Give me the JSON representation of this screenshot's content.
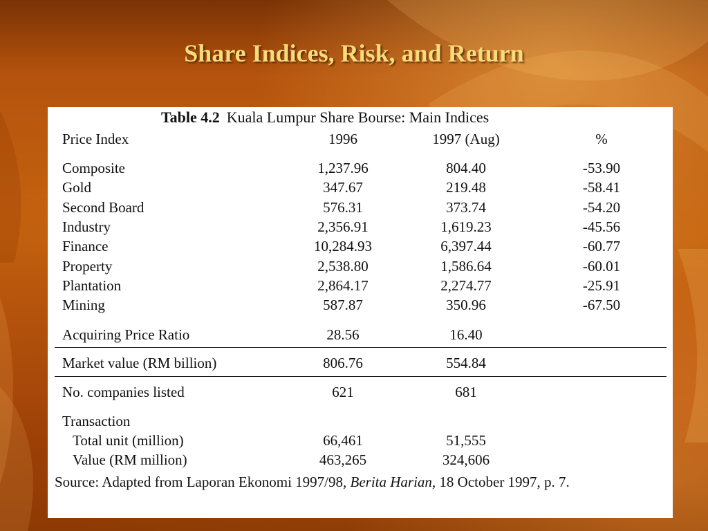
{
  "slide": {
    "title": "Share Indices, Risk, and Return"
  },
  "table": {
    "caption_label": "Table 4.2",
    "caption_text": "Kuala Lumpur Share Bourse: Main Indices",
    "headers": {
      "label": "Price Index",
      "col_1996": "1996",
      "col_1997": "1997 (Aug)",
      "col_pct": "%"
    },
    "index_rows": [
      {
        "label": "Composite",
        "v1996": "1,237.96",
        "v1997": "804.40",
        "pct": "-53.90"
      },
      {
        "label": "Gold",
        "v1996": "347.67",
        "v1997": "219.48",
        "pct": "-58.41"
      },
      {
        "label": "Second Board",
        "v1996": "576.31",
        "v1997": "373.74",
        "pct": "-54.20"
      },
      {
        "label": "Industry",
        "v1996": "2,356.91",
        "v1997": "1,619.23",
        "pct": "-45.56"
      },
      {
        "label": "Finance",
        "v1996": "10,284.93",
        "v1997": "6,397.44",
        "pct": "-60.77"
      },
      {
        "label": "Property",
        "v1996": "2,538.80",
        "v1997": "1,586.64",
        "pct": "-60.01"
      },
      {
        "label": "Plantation",
        "v1996": "2,864.17",
        "v1997": "2,274.77",
        "pct": "-25.91"
      },
      {
        "label": "Mining",
        "v1996": "587.87",
        "v1997": "350.96",
        "pct": "-67.50"
      }
    ],
    "acquiring": {
      "label": "Acquiring Price Ratio",
      "v1996": "28.56",
      "v1997": "16.40"
    },
    "market_value": {
      "label": "Market value (RM billion)",
      "v1996": "806.76",
      "v1997": "554.84"
    },
    "companies": {
      "label": "No. companies listed",
      "v1996": "621",
      "v1997": "681"
    },
    "transaction": {
      "label": "Transaction",
      "total_unit": {
        "label": "Total unit (million)",
        "v1996": "66,461",
        "v1997": "51,555"
      },
      "value": {
        "label": "Value (RM million)",
        "v1996": "463,265",
        "v1997": "324,606"
      }
    },
    "source": {
      "prefix": "Source: Adapted from Laporan Ekonomi 1997/98, ",
      "italic": "Berita Harian,",
      "suffix": " 18 October 1997, p. 7."
    }
  }
}
